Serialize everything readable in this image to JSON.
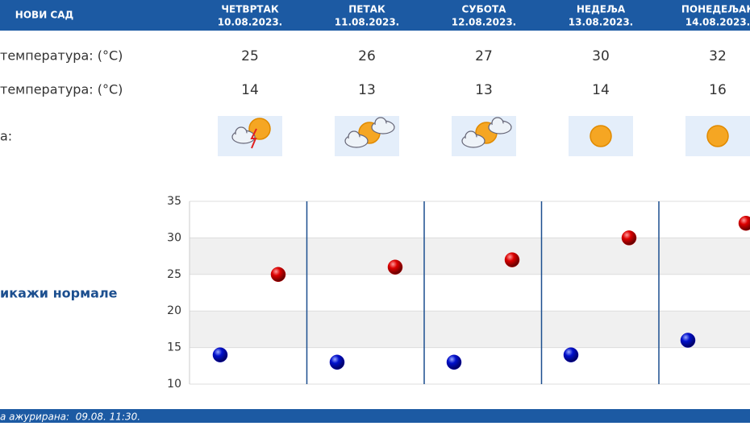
{
  "header": {
    "title": "НОВИ САД",
    "days": [
      {
        "name": "ЧЕТВРТАК",
        "date": "10.08.2023."
      },
      {
        "name": "ПЕТАК",
        "date": "11.08.2023."
      },
      {
        "name": "СУБОТА",
        "date": "12.08.2023."
      },
      {
        "name": "НЕДЕЉА",
        "date": "13.08.2023."
      },
      {
        "name": "ПОНЕДЕЉАК",
        "date": "14.08.2023."
      }
    ]
  },
  "table": {
    "rows": [
      {
        "label": "температура: (°C)",
        "values": [
          25,
          26,
          27,
          30,
          32
        ]
      },
      {
        "label": "температура: (°C)",
        "values": [
          14,
          13,
          13,
          14,
          16
        ]
      },
      {
        "label": "а:"
      }
    ]
  },
  "link": "икажи нормале",
  "footer": "а ажурирана:  09.08. 11:30.",
  "chart_data": {
    "type": "scatter",
    "ylim": [
      10,
      35
    ],
    "yticks": [
      10,
      15,
      20,
      25,
      30,
      35
    ],
    "series": [
      {
        "color": "#cc0000",
        "values": [
          25,
          26,
          27,
          30,
          32
        ]
      },
      {
        "color": "#0000bb",
        "values": [
          14,
          13,
          13,
          14,
          16
        ]
      }
    ]
  }
}
